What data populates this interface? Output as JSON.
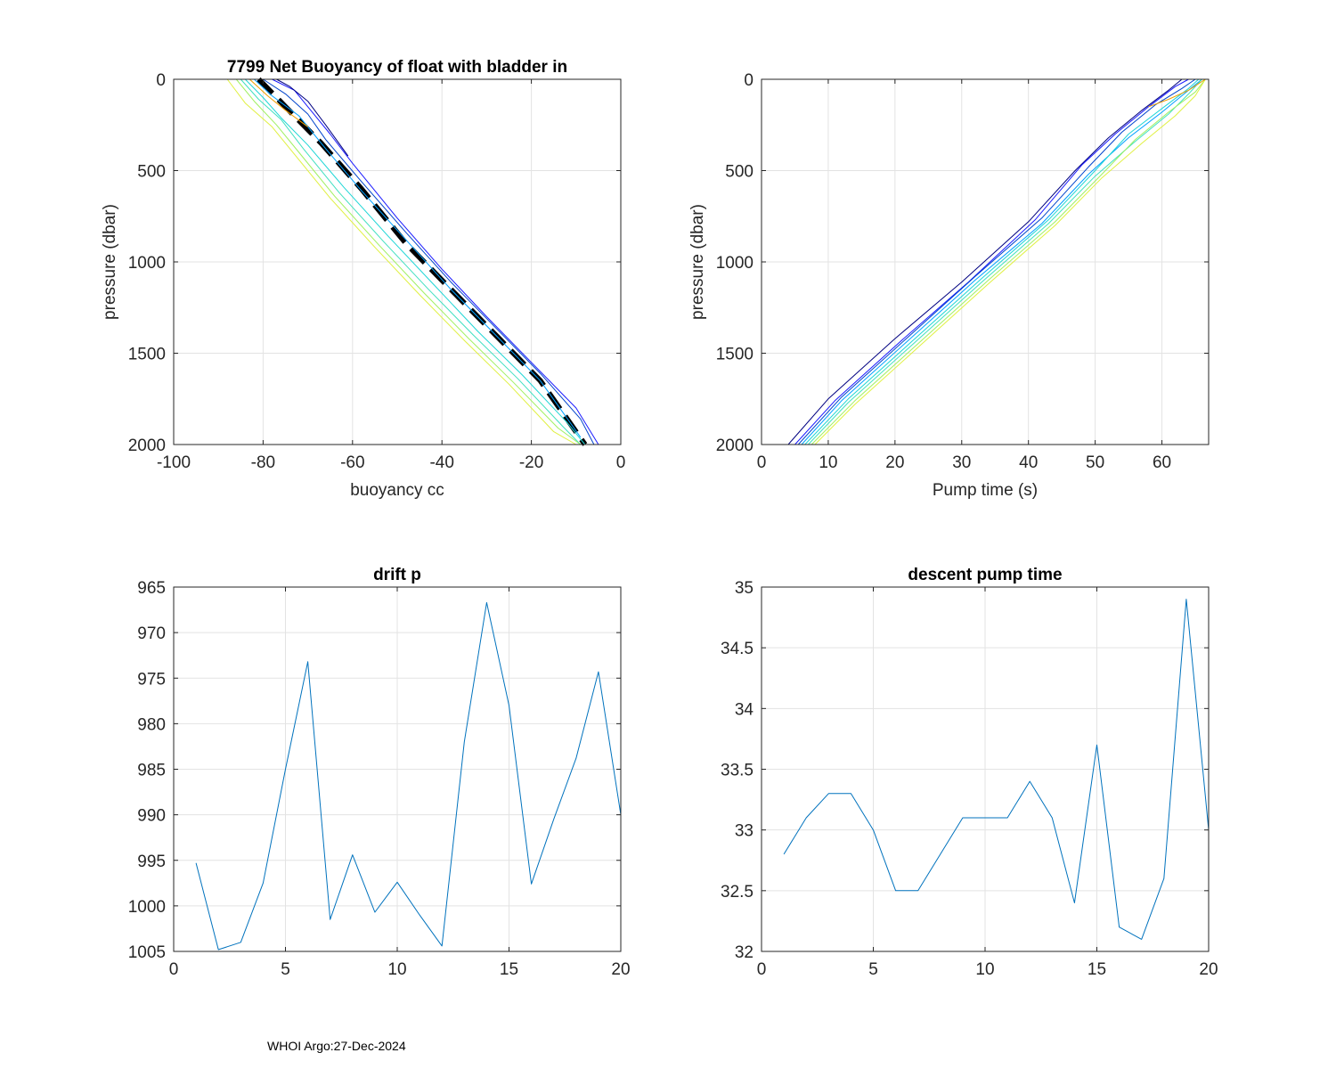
{
  "footer": "WHOI Argo:27-Dec-2024",
  "chart_data": [
    {
      "type": "line",
      "title": "7799 Net Buoyancy of float with bladder in",
      "xlabel": "buoyancy cc",
      "ylabel": "pressure (dbar)",
      "xlim": [
        -100,
        0
      ],
      "ylim": [
        0,
        2000
      ],
      "y_reversed": true,
      "grid": true,
      "xticks": [
        "-100",
        "-80",
        "-60",
        "-40",
        "-20",
        "0"
      ],
      "yticks": [
        "0",
        "500",
        "1000",
        "1500",
        "2000"
      ],
      "series": [
        {
          "color": "#000000",
          "style": "dashed-thick",
          "x": [
            -81,
            -75,
            -67,
            -58,
            -48,
            -38,
            -28,
            -18,
            -8
          ],
          "y": [
            0,
            150,
            350,
            600,
            900,
            1150,
            1400,
            1650,
            2000
          ]
        },
        {
          "color": "#1a1aff",
          "x": [
            -78,
            -73,
            -70,
            -65,
            -60,
            -50,
            -40,
            -30,
            -20,
            -10,
            -5
          ],
          "y": [
            0,
            60,
            150,
            300,
            460,
            760,
            1040,
            1300,
            1550,
            1800,
            2000
          ]
        },
        {
          "color": "#0044cc",
          "x": [
            -80,
            -75,
            -70,
            -66,
            -58,
            -48,
            -38,
            -28,
            -18,
            -9,
            -6
          ],
          "y": [
            0,
            80,
            190,
            330,
            560,
            840,
            1110,
            1360,
            1610,
            1860,
            2000
          ]
        },
        {
          "color": "#00a0ff",
          "x": [
            -82,
            -78,
            -72,
            -66,
            -58,
            -48,
            -38,
            -28,
            -18,
            -9
          ],
          "y": [
            0,
            90,
            200,
            380,
            610,
            880,
            1150,
            1400,
            1650,
            1960
          ]
        },
        {
          "color": "#1ed6d6",
          "x": [
            -84,
            -80,
            -76,
            -70,
            -62,
            -52,
            -42,
            -32,
            -22,
            -12,
            -8
          ],
          "y": [
            0,
            100,
            210,
            360,
            590,
            860,
            1120,
            1380,
            1620,
            1880,
            2000
          ]
        },
        {
          "color": "#40e0c0",
          "x": [
            -85,
            -81,
            -76,
            -71,
            -63,
            -53,
            -43,
            -33,
            -23,
            -13,
            -9
          ],
          "y": [
            0,
            110,
            220,
            380,
            620,
            890,
            1150,
            1400,
            1640,
            1900,
            2000
          ]
        },
        {
          "color": "#a0f060",
          "x": [
            -86,
            -82,
            -77,
            -72,
            -64,
            -54,
            -44,
            -34,
            -24,
            -14,
            -9
          ],
          "y": [
            0,
            120,
            250,
            400,
            640,
            910,
            1170,
            1420,
            1660,
            1910,
            2000
          ]
        },
        {
          "color": "#e0f040",
          "x": [
            -88,
            -84,
            -78,
            -73,
            -65,
            -55,
            -45,
            -35,
            -25,
            -15,
            -10
          ],
          "y": [
            0,
            130,
            260,
            410,
            650,
            920,
            1180,
            1430,
            1670,
            1930,
            2000
          ]
        },
        {
          "color": "#f0a000",
          "x": [
            -83,
            -79,
            -75,
            -70
          ],
          "y": [
            0,
            90,
            170,
            260
          ]
        },
        {
          "color": "#000080",
          "x": [
            -77,
            -74,
            -70,
            -66,
            -61
          ],
          "y": [
            0,
            40,
            120,
            250,
            420
          ]
        }
      ]
    },
    {
      "type": "line",
      "title": "",
      "xlabel": "Pump time (s)",
      "ylabel": "pressure (dbar)",
      "xlim": [
        0,
        67
      ],
      "ylim": [
        0,
        2000
      ],
      "y_reversed": true,
      "grid": true,
      "xticks": [
        "0",
        "10",
        "20",
        "30",
        "40",
        "50",
        "60"
      ],
      "yticks": [
        "0",
        "500",
        "1000",
        "1500",
        "2000"
      ],
      "series": [
        {
          "color": "#000080",
          "x": [
            4,
            10,
            20,
            30,
            40,
            47,
            52,
            57,
            61,
            63
          ],
          "y": [
            2000,
            1750,
            1420,
            1110,
            780,
            500,
            320,
            170,
            60,
            0
          ]
        },
        {
          "color": "#1a1aff",
          "x": [
            5,
            11,
            21,
            31,
            41,
            48,
            53,
            58,
            62,
            64
          ],
          "y": [
            2000,
            1760,
            1430,
            1110,
            770,
            470,
            300,
            150,
            40,
            0
          ]
        },
        {
          "color": "#0044cc",
          "x": [
            5.5,
            12,
            22,
            32,
            42,
            49,
            54,
            59,
            63,
            65
          ],
          "y": [
            2000,
            1740,
            1410,
            1080,
            760,
            480,
            290,
            140,
            50,
            0
          ]
        },
        {
          "color": "#00a0ff",
          "x": [
            6,
            12,
            22,
            32,
            42,
            49,
            55,
            60,
            64,
            66
          ],
          "y": [
            2000,
            1760,
            1430,
            1100,
            790,
            520,
            320,
            180,
            60,
            0
          ]
        },
        {
          "color": "#1ed6d6",
          "x": [
            6.5,
            13,
            23,
            33,
            43,
            50,
            55,
            60,
            64,
            65.5
          ],
          "y": [
            2000,
            1750,
            1420,
            1090,
            770,
            500,
            300,
            160,
            50,
            0
          ]
        },
        {
          "color": "#40e0c0",
          "x": [
            7,
            13,
            23,
            33,
            43,
            50,
            56,
            61,
            64,
            66
          ],
          "y": [
            2000,
            1770,
            1440,
            1110,
            790,
            530,
            340,
            190,
            80,
            0
          ]
        },
        {
          "color": "#a0f060",
          "x": [
            7.5,
            14,
            24,
            34,
            44,
            51,
            56,
            61,
            65,
            66.5
          ],
          "y": [
            2000,
            1760,
            1430,
            1100,
            780,
            520,
            330,
            180,
            70,
            0
          ]
        },
        {
          "color": "#e0f040",
          "x": [
            8,
            14,
            24,
            34,
            44,
            51,
            57,
            62,
            65,
            66.5
          ],
          "y": [
            2000,
            1780,
            1450,
            1120,
            800,
            540,
            350,
            200,
            90,
            0
          ]
        },
        {
          "color": "#f0a000",
          "x": [
            58,
            61,
            64,
            66.5
          ],
          "y": [
            150,
            110,
            60,
            0
          ]
        }
      ]
    },
    {
      "type": "line",
      "title": "drift p",
      "xlabel": "",
      "ylabel": "",
      "xlim": [
        0,
        20
      ],
      "ylim": [
        965,
        1005
      ],
      "y_reversed": true,
      "grid": true,
      "xticks": [
        "0",
        "5",
        "10",
        "15",
        "20"
      ],
      "yticks": [
        "965",
        "970",
        "975",
        "980",
        "985",
        "990",
        "995",
        "1000",
        "1005"
      ],
      "series": [
        {
          "color": "#0072bd",
          "x": [
            1,
            2,
            3,
            4,
            5,
            6,
            7,
            8,
            9,
            10,
            11,
            12,
            13,
            14,
            15,
            16,
            17,
            18,
            19,
            20
          ],
          "y": [
            995.3,
            1004.8,
            1004.0,
            997.5,
            985.0,
            973.2,
            1001.5,
            994.4,
            1000.7,
            997.4,
            1001.0,
            1004.4,
            982.0,
            966.7,
            978.0,
            997.6,
            990.5,
            983.8,
            974.3,
            990.0
          ]
        }
      ]
    },
    {
      "type": "line",
      "title": "descent pump time",
      "xlabel": "",
      "ylabel": "",
      "xlim": [
        0,
        20
      ],
      "ylim": [
        32,
        35
      ],
      "y_reversed": false,
      "grid": true,
      "xticks": [
        "0",
        "5",
        "10",
        "15",
        "20"
      ],
      "yticks": [
        "32",
        "32.5",
        "33",
        "33.5",
        "34",
        "34.5",
        "35"
      ],
      "series": [
        {
          "color": "#0072bd",
          "x": [
            1,
            2,
            3,
            4,
            5,
            6,
            7,
            8,
            9,
            10,
            11,
            12,
            13,
            14,
            15,
            16,
            17,
            18,
            19,
            20
          ],
          "y": [
            32.8,
            33.1,
            33.3,
            33.3,
            33.0,
            32.5,
            32.5,
            32.8,
            33.1,
            33.1,
            33.1,
            33.4,
            33.1,
            32.4,
            33.7,
            32.2,
            32.1,
            32.6,
            34.9,
            33.0
          ]
        }
      ]
    }
  ]
}
